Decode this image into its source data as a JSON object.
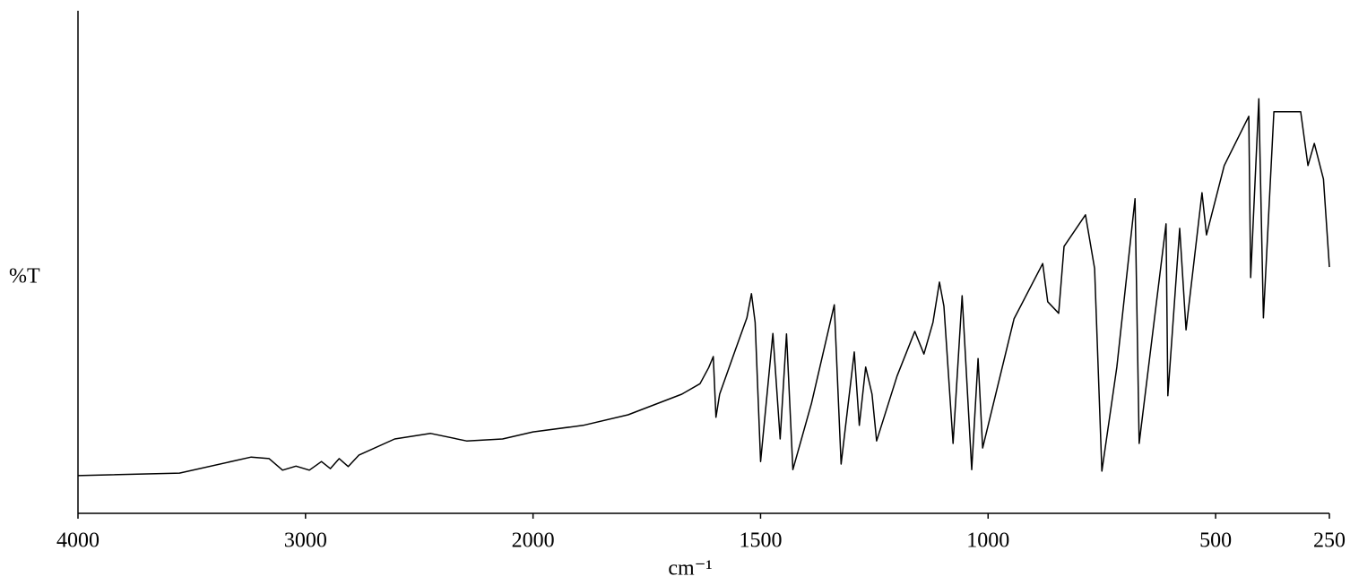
{
  "chart_data": {
    "type": "line",
    "xlabel": "cm⁻¹",
    "ylabel": "%T",
    "xlim": [
      4000,
      250
    ],
    "ylim": [
      0,
      100
    ],
    "x_scale_change": {
      "at": 2000,
      "factor": 2
    },
    "xticks": [
      4000,
      3000,
      2000,
      1500,
      1000,
      500,
      250
    ],
    "color": "#000000",
    "x": [
      4000,
      3554,
      3239,
      3160,
      3101,
      3042,
      2983,
      2930,
      2891,
      2852,
      2812,
      2765,
      2608,
      2450,
      2292,
      2134,
      2000,
      1890,
      1791,
      1673,
      1633,
      1614,
      1604,
      1598,
      1590,
      1555,
      1530,
      1520,
      1512,
      1500,
      1473,
      1457,
      1443,
      1429,
      1388,
      1338,
      1323,
      1294,
      1283,
      1269,
      1255,
      1245,
      1200,
      1161,
      1141,
      1121,
      1107,
      1097,
      1077,
      1057,
      1036,
      1022,
      1012,
      943,
      880,
      869,
      845,
      833,
      786,
      766,
      750,
      717,
      677,
      668,
      609,
      605,
      579,
      565,
      530,
      520,
      481,
      427,
      423,
      405,
      395,
      372,
      313,
      297,
      283,
      263,
      250
    ],
    "values": [
      7.5,
      8.0,
      11.2,
      10.9,
      8.6,
      9.4,
      8.6,
      10.3,
      8.9,
      10.9,
      9.3,
      11.6,
      14.8,
      15.9,
      14.4,
      14.8,
      16.2,
      17.5,
      19.6,
      23.7,
      25.8,
      29.0,
      31.2,
      19.1,
      23.7,
      32.6,
      38.9,
      43.7,
      38.0,
      10.3,
      35.8,
      14.8,
      35.7,
      8.7,
      21.9,
      41.5,
      9.8,
      32.1,
      17.5,
      29.1,
      23.7,
      14.4,
      27.3,
      36.2,
      31.7,
      38.0,
      46.0,
      41.2,
      13.9,
      43.3,
      8.7,
      30.8,
      13.0,
      38.7,
      49.7,
      42.1,
      39.8,
      53.1,
      59.4,
      48.7,
      8.4,
      29.1,
      62.6,
      13.9,
      57.6,
      23.4,
      56.7,
      36.5,
      63.8,
      55.4,
      69.2,
      79.0,
      46.9,
      82.5,
      38.9,
      79.9,
      79.9,
      69.2,
      73.6,
      66.5,
      49.0
    ]
  }
}
